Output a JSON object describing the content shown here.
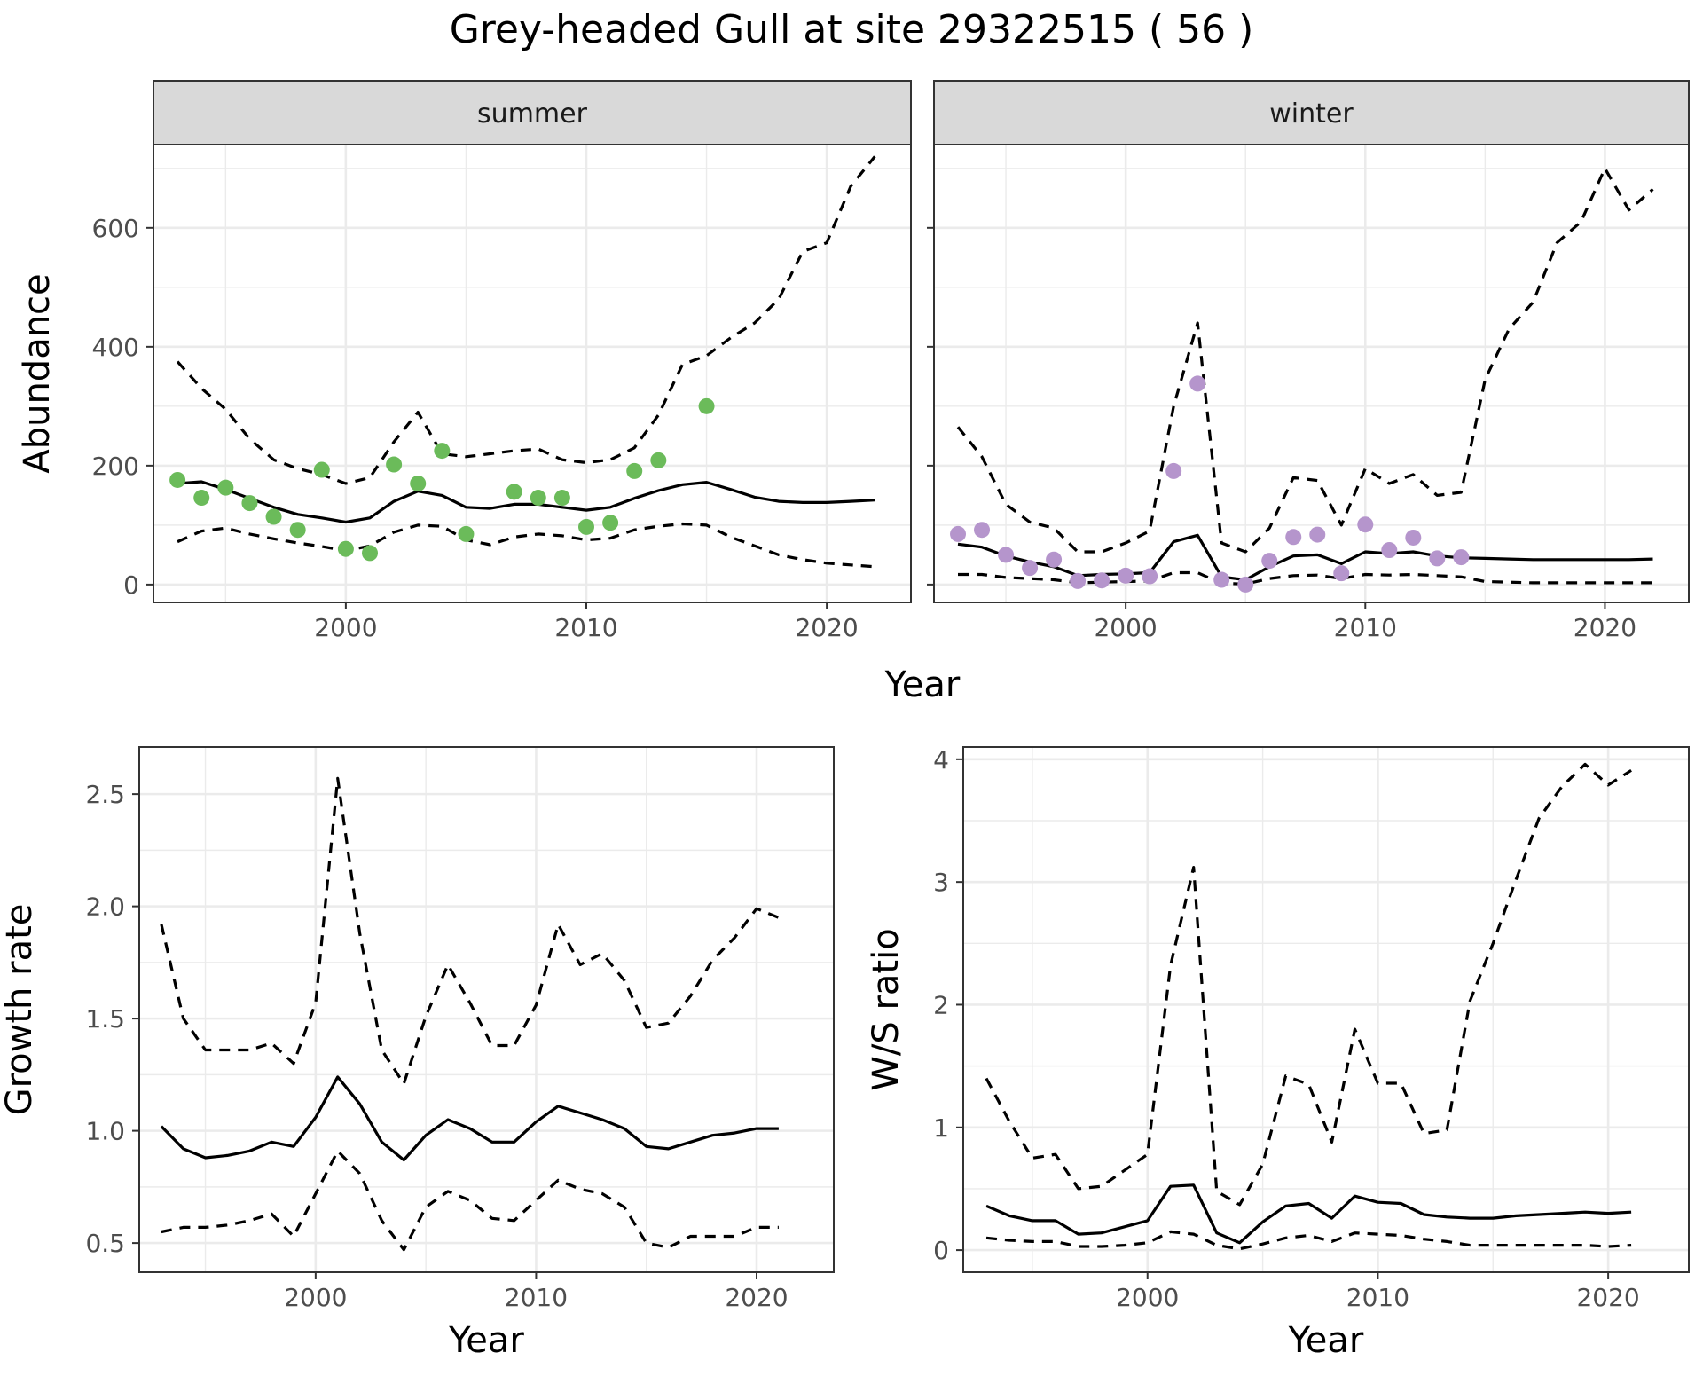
{
  "title": "Grey-headed Gull at site 29322515 ( 56 )",
  "colors": {
    "summer_points": "#6bbb5a",
    "winter_points": "#b595cc",
    "line": "#000000",
    "strip_fill": "#d9d9d9",
    "grid": "#ebebeb"
  },
  "chart_data": [
    {
      "type": "line",
      "panel": "summer",
      "strip": "summer",
      "xlabel": "Year",
      "ylabel": "Abundance",
      "xlim": [
        1992,
        2023.5
      ],
      "ylim": [
        -30,
        740
      ],
      "xticks": [
        2000,
        2010,
        2020
      ],
      "yticks": [
        0,
        200,
        400,
        600
      ],
      "show_y_tick_labels": true,
      "grid": true,
      "series": [
        {
          "role": "estimate",
          "style": "solid",
          "x": [
            1993,
            1994,
            1995,
            1996,
            1997,
            1998,
            1999,
            2000,
            2001,
            2002,
            2003,
            2004,
            2005,
            2006,
            2007,
            2008,
            2009,
            2010,
            2011,
            2012,
            2013,
            2014,
            2015,
            2016,
            2017,
            2018,
            2019,
            2020,
            2021,
            2022
          ],
          "y": [
            170,
            173,
            160,
            145,
            130,
            118,
            112,
            105,
            112,
            140,
            157,
            150,
            130,
            128,
            135,
            135,
            130,
            125,
            130,
            145,
            158,
            168,
            172,
            160,
            147,
            140,
            138,
            138,
            140,
            142
          ]
        },
        {
          "role": "upper",
          "style": "dashed",
          "x": [
            1993,
            1994,
            1995,
            1996,
            1997,
            1998,
            1999,
            2000,
            2001,
            2002,
            2003,
            2004,
            2005,
            2006,
            2007,
            2008,
            2009,
            2010,
            2011,
            2012,
            2013,
            2014,
            2015,
            2016,
            2017,
            2018,
            2019,
            2020,
            2021,
            2022
          ],
          "y": [
            375,
            330,
            295,
            245,
            210,
            195,
            185,
            170,
            180,
            240,
            290,
            220,
            215,
            220,
            225,
            228,
            210,
            205,
            210,
            230,
            285,
            370,
            385,
            415,
            440,
            480,
            560,
            575,
            670,
            720
          ]
        },
        {
          "role": "lower",
          "style": "dashed",
          "x": [
            1993,
            1994,
            1995,
            1996,
            1997,
            1998,
            1999,
            2000,
            2001,
            2002,
            2003,
            2004,
            2005,
            2006,
            2007,
            2008,
            2009,
            2010,
            2011,
            2012,
            2013,
            2014,
            2015,
            2016,
            2017,
            2018,
            2019,
            2020,
            2021,
            2022
          ],
          "y": [
            72,
            90,
            95,
            85,
            77,
            70,
            64,
            57,
            65,
            88,
            100,
            98,
            75,
            67,
            80,
            85,
            82,
            75,
            78,
            92,
            98,
            102,
            100,
            80,
            65,
            50,
            42,
            36,
            33,
            30
          ]
        },
        {
          "role": "observed",
          "style": "points",
          "x": [
            1993,
            1994,
            1995,
            1996,
            1997,
            1998,
            1999,
            2000,
            2001,
            2002,
            2003,
            2004,
            2005,
            2007,
            2008,
            2009,
            2010,
            2011,
            2012,
            2013,
            2015
          ],
          "y": [
            176,
            146,
            163,
            137,
            114,
            92,
            193,
            60,
            53,
            202,
            170,
            225,
            85,
            156,
            146,
            146,
            97,
            104,
            191,
            209,
            300
          ]
        }
      ]
    },
    {
      "type": "line",
      "panel": "winter",
      "strip": "winter",
      "xlabel": "Year",
      "ylabel": "Abundance",
      "xlim": [
        1992,
        2023.5
      ],
      "ylim": [
        -30,
        740
      ],
      "xticks": [
        2000,
        2010,
        2020
      ],
      "yticks": [
        0,
        200,
        400,
        600
      ],
      "show_y_tick_labels": false,
      "grid": true,
      "series": [
        {
          "role": "estimate",
          "style": "solid",
          "x": [
            1993,
            1994,
            1995,
            1996,
            1997,
            1998,
            1999,
            2000,
            2001,
            2002,
            2003,
            2004,
            2005,
            2006,
            2007,
            2008,
            2009,
            2010,
            2011,
            2012,
            2013,
            2014,
            2015,
            2016,
            2017,
            2018,
            2019,
            2020,
            2021,
            2022
          ],
          "y": [
            68,
            63,
            48,
            38,
            30,
            15,
            17,
            18,
            20,
            72,
            83,
            13,
            8,
            30,
            48,
            50,
            35,
            55,
            52,
            55,
            48,
            45,
            44,
            43,
            42,
            42,
            42,
            42,
            42,
            43
          ]
        },
        {
          "role": "upper",
          "style": "dashed",
          "x": [
            1993,
            1994,
            1995,
            1996,
            1997,
            1998,
            1999,
            2000,
            2001,
            2002,
            2003,
            2004,
            2005,
            2006,
            2007,
            2008,
            2009,
            2010,
            2011,
            2012,
            2013,
            2014,
            2015,
            2016,
            2017,
            2018,
            2019,
            2020,
            2021,
            2022
          ],
          "y": [
            265,
            215,
            135,
            105,
            95,
            55,
            55,
            70,
            90,
            300,
            440,
            70,
            55,
            95,
            180,
            175,
            100,
            195,
            170,
            185,
            150,
            155,
            345,
            430,
            475,
            575,
            610,
            700,
            630,
            665
          ]
        },
        {
          "role": "lower",
          "style": "dashed",
          "x": [
            1993,
            1994,
            1995,
            1996,
            1997,
            1998,
            1999,
            2000,
            2001,
            2002,
            2003,
            2004,
            2005,
            2006,
            2007,
            2008,
            2009,
            2010,
            2011,
            2012,
            2013,
            2014,
            2015,
            2016,
            2017,
            2018,
            2019,
            2020,
            2021,
            2022
          ],
          "y": [
            17,
            17,
            12,
            10,
            8,
            3,
            4,
            5,
            6,
            20,
            20,
            2,
            1,
            10,
            15,
            16,
            10,
            17,
            16,
            17,
            15,
            13,
            5,
            4,
            3,
            3,
            3,
            3,
            3,
            3
          ]
        },
        {
          "role": "observed",
          "style": "points",
          "x": [
            1993,
            1994,
            1995,
            1996,
            1997,
            1998,
            1999,
            2000,
            2001,
            2002,
            2003,
            2004,
            2005,
            2006,
            2007,
            2008,
            2009,
            2010,
            2011,
            2012,
            2013,
            2014
          ],
          "y": [
            85,
            92,
            50,
            28,
            42,
            6,
            7,
            15,
            14,
            191,
            338,
            8,
            0,
            40,
            80,
            84,
            19,
            101,
            58,
            79,
            44,
            46
          ]
        }
      ]
    },
    {
      "type": "line",
      "panel": "growth",
      "xlabel": "Year",
      "ylabel": "Growth rate",
      "xlim": [
        1992,
        2023.5
      ],
      "ylim": [
        0.37,
        2.71
      ],
      "xticks": [
        2000,
        2010,
        2020
      ],
      "yticks": [
        0.5,
        1.0,
        1.5,
        2.0,
        2.5
      ],
      "ytick_labels": [
        "0.5",
        "1.0",
        "1.5",
        "2.0",
        "2.5"
      ],
      "grid": true,
      "series": [
        {
          "role": "estimate",
          "style": "solid",
          "x": [
            1993,
            1994,
            1995,
            1996,
            1997,
            1998,
            1999,
            2000,
            2001,
            2002,
            2003,
            2004,
            2005,
            2006,
            2007,
            2008,
            2009,
            2010,
            2011,
            2012,
            2013,
            2014,
            2015,
            2016,
            2017,
            2018,
            2019,
            2020,
            2021
          ],
          "y": [
            1.02,
            0.92,
            0.88,
            0.89,
            0.91,
            0.95,
            0.93,
            1.06,
            1.24,
            1.12,
            0.95,
            0.87,
            0.98,
            1.05,
            1.01,
            0.95,
            0.95,
            1.04,
            1.11,
            1.08,
            1.05,
            1.01,
            0.93,
            0.92,
            0.95,
            0.98,
            0.99,
            1.01,
            1.01
          ]
        },
        {
          "role": "upper",
          "style": "dashed",
          "x": [
            1993,
            1994,
            1995,
            1996,
            1997,
            1998,
            1999,
            2000,
            2001,
            2002,
            2003,
            2004,
            2005,
            2006,
            2007,
            2008,
            2009,
            2010,
            2011,
            2012,
            2013,
            2014,
            2015,
            2016,
            2017,
            2018,
            2019,
            2020,
            2021
          ],
          "y": [
            1.92,
            1.5,
            1.36,
            1.36,
            1.36,
            1.39,
            1.3,
            1.57,
            2.57,
            1.88,
            1.36,
            1.21,
            1.51,
            1.74,
            1.57,
            1.38,
            1.38,
            1.56,
            1.92,
            1.74,
            1.79,
            1.67,
            1.46,
            1.48,
            1.6,
            1.76,
            1.86,
            1.99,
            1.95
          ]
        },
        {
          "role": "lower",
          "style": "dashed",
          "x": [
            1993,
            1994,
            1995,
            1996,
            1997,
            1998,
            1999,
            2000,
            2001,
            2002,
            2003,
            2004,
            2005,
            2006,
            2007,
            2008,
            2009,
            2010,
            2011,
            2012,
            2013,
            2014,
            2015,
            2016,
            2017,
            2018,
            2019,
            2020,
            2021
          ],
          "y": [
            0.55,
            0.57,
            0.57,
            0.58,
            0.6,
            0.63,
            0.53,
            0.72,
            0.91,
            0.81,
            0.6,
            0.47,
            0.66,
            0.73,
            0.69,
            0.61,
            0.6,
            0.69,
            0.78,
            0.74,
            0.72,
            0.66,
            0.5,
            0.48,
            0.53,
            0.53,
            0.53,
            0.57,
            0.57
          ]
        }
      ]
    },
    {
      "type": "line",
      "panel": "ws_ratio",
      "xlabel": "Year",
      "ylabel": "W/S ratio",
      "xlim": [
        1992,
        2023.5
      ],
      "ylim": [
        -0.18,
        4.1
      ],
      "xticks": [
        2000,
        2010,
        2020
      ],
      "yticks": [
        0,
        1,
        2,
        3,
        4
      ],
      "ytick_labels": [
        "0",
        "1",
        "2",
        "3",
        "4"
      ],
      "grid": true,
      "series": [
        {
          "role": "estimate",
          "style": "solid",
          "x": [
            1993,
            1994,
            1995,
            1996,
            1997,
            1998,
            1999,
            2000,
            2001,
            2002,
            2003,
            2004,
            2005,
            2006,
            2007,
            2008,
            2009,
            2010,
            2011,
            2012,
            2013,
            2014,
            2015,
            2016,
            2017,
            2018,
            2019,
            2020,
            2021
          ],
          "y": [
            0.36,
            0.28,
            0.24,
            0.24,
            0.13,
            0.14,
            0.19,
            0.24,
            0.52,
            0.53,
            0.14,
            0.06,
            0.23,
            0.36,
            0.38,
            0.26,
            0.44,
            0.39,
            0.38,
            0.29,
            0.27,
            0.26,
            0.26,
            0.28,
            0.29,
            0.3,
            0.31,
            0.3,
            0.31
          ]
        },
        {
          "role": "upper",
          "style": "dashed",
          "x": [
            1993,
            1994,
            1995,
            1996,
            1997,
            1998,
            1999,
            2000,
            2001,
            2002,
            2003,
            2004,
            2005,
            2006,
            2007,
            2008,
            2009,
            2010,
            2011,
            2012,
            2013,
            2014,
            2015,
            2016,
            2017,
            2018,
            2019,
            2020,
            2021
          ],
          "y": [
            1.4,
            1.05,
            0.75,
            0.78,
            0.5,
            0.52,
            0.65,
            0.78,
            2.32,
            3.12,
            0.48,
            0.37,
            0.7,
            1.42,
            1.35,
            0.88,
            1.8,
            1.36,
            1.36,
            0.95,
            0.98,
            2.03,
            2.5,
            3.02,
            3.52,
            3.78,
            3.96,
            3.79,
            3.91
          ]
        },
        {
          "role": "lower",
          "style": "dashed",
          "x": [
            1993,
            1994,
            1995,
            1996,
            1997,
            1998,
            1999,
            2000,
            2001,
            2002,
            2003,
            2004,
            2005,
            2006,
            2007,
            2008,
            2009,
            2010,
            2011,
            2012,
            2013,
            2014,
            2015,
            2016,
            2017,
            2018,
            2019,
            2020,
            2021
          ],
          "y": [
            0.1,
            0.08,
            0.07,
            0.07,
            0.03,
            0.03,
            0.04,
            0.06,
            0.15,
            0.13,
            0.04,
            0.01,
            0.05,
            0.1,
            0.12,
            0.07,
            0.14,
            0.13,
            0.12,
            0.09,
            0.07,
            0.04,
            0.04,
            0.04,
            0.04,
            0.04,
            0.04,
            0.03,
            0.04
          ]
        }
      ]
    }
  ]
}
